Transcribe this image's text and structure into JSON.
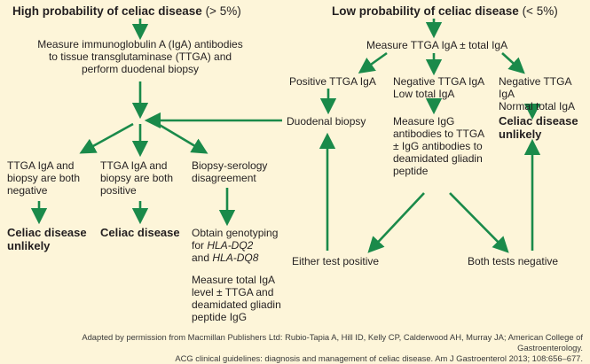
{
  "left": {
    "heading_bold": "High probability of celiac disease",
    "heading_rest": " (> 5%)",
    "start": "Measure immunoglobulin A (IgA) antibodies\nto tissue transglutaminase (TTGA) and\nperform duodenal biopsy",
    "branch_negative": "TTGA IgA and\nbiopsy are both\nnegative",
    "branch_positive": "TTGA IgA and\nbiopsy are both\npositive",
    "branch_disagree": "Biopsy-serology\ndisagreement",
    "result_unlikely": "Celiac disease\nunlikely",
    "result_disease": "Celiac disease",
    "genotype_prefix": "Obtain genotyping\nfor ",
    "genotype_dq2": "HLA-DQ2",
    "genotype_and": "and ",
    "genotype_dq8": "HLA-DQ8",
    "total_iga": "Measure total IgA\nlevel ± TTGA and\ndeamidated gliadin\npeptide IgG"
  },
  "right": {
    "heading_bold": "Low probability of celiac disease",
    "heading_rest": " (< 5%)",
    "start": "Measure TTGA IgA ± total IgA",
    "positive": "Positive TTGA IgA",
    "neg_low": "Negative TTGA IgA\nLow total IgA",
    "neg_normal": "Negative TTGA IgA\nNormal total IgA",
    "duodenal": "Duodenal biopsy",
    "measure_igg": "Measure IgG\nantibodies to TTGA\n± IgG antibodies to\ndeamidated gliadin\npeptide",
    "unlikely": "Celiac disease\nunlikely",
    "either": "Either test positive",
    "both_negative": "Both tests negative"
  },
  "citation": "Adapted by permission from Macmillan Publishers Ltd: Rubio-Tapia A, Hill ID, Kelly CP, Calderwood AH, Murray JA; American College of Gastroenterology.\nACG clinical guidelines: diagnosis and management of celiac disease. Am J Gastroenterol 2013; 108:656–677.",
  "colors": {
    "background": "#fdf5d9",
    "arrow": "#1a8a4a",
    "text": "#231f20"
  }
}
